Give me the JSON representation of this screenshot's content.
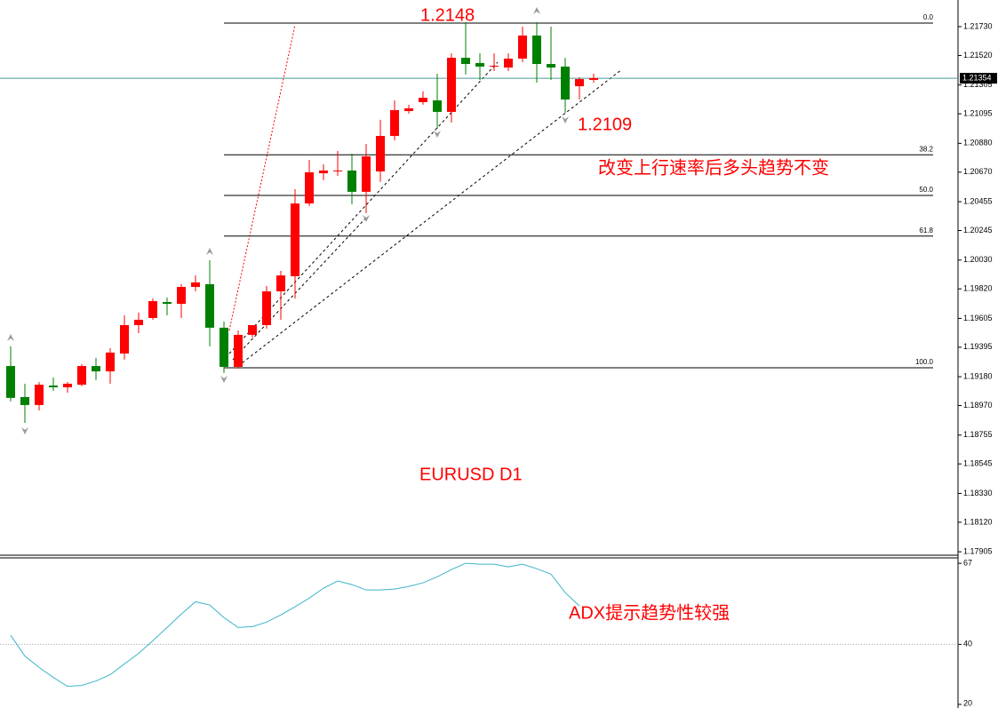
{
  "chart_data": [
    {
      "type": "candlestick",
      "up_color": "#ff0000",
      "down_color": "#008000",
      "open": [
        1.19258,
        1.19032,
        1.18974,
        1.19116,
        1.19103,
        1.19122,
        1.19258,
        1.19219,
        1.19349,
        1.19556,
        1.19608,
        1.19724,
        1.19711,
        1.19834,
        1.19854,
        1.19537,
        1.19252,
        1.19485,
        1.19556,
        1.19802,
        1.19912,
        1.20442,
        1.20662,
        1.20682,
        1.20682,
        1.20527,
        1.20675,
        1.20934,
        1.21115,
        1.2118,
        1.21193,
        1.21109,
        1.21503,
        1.21465,
        1.21439,
        1.21432,
        1.21497,
        1.21665,
        1.21458,
        1.21439,
        1.21296,
        1.21342
      ],
      "high": [
        1.19401,
        1.19129,
        1.19142,
        1.19174,
        1.19142,
        1.19271,
        1.19317,
        1.19388,
        1.19627,
        1.19647,
        1.1975,
        1.19757,
        1.19854,
        1.19918,
        1.20028,
        1.19582,
        1.19517,
        1.19556,
        1.19841,
        1.19951,
        1.20546,
        1.20759,
        1.20727,
        1.20824,
        1.20805,
        1.20876,
        1.21051,
        1.21193,
        1.21161,
        1.21258,
        1.21387,
        1.21536,
        1.21762,
        1.21536,
        1.21536,
        1.21536,
        1.2173,
        1.21762,
        1.2173,
        1.21503,
        1.21361,
        1.21387
      ],
      "low": [
        1.19,
        1.18844,
        1.18935,
        1.19077,
        1.19064,
        1.1911,
        1.19155,
        1.19129,
        1.19304,
        1.19498,
        1.19595,
        1.19627,
        1.19608,
        1.19802,
        1.19401,
        1.19207,
        1.19239,
        1.19466,
        1.1953,
        1.19595,
        1.1975,
        1.20423,
        1.20611,
        1.20643,
        1.20436,
        1.20371,
        1.20598,
        1.20902,
        1.21096,
        1.21161,
        1.20986,
        1.21031,
        1.21381,
        1.21342,
        1.21406,
        1.21406,
        1.21471,
        1.21322,
        1.21342,
        1.21102,
        1.21199,
        1.21322
      ],
      "close": [
        1.19026,
        1.18974,
        1.19122,
        1.19103,
        1.19129,
        1.19258,
        1.19219,
        1.19356,
        1.19556,
        1.19595,
        1.19731,
        1.19711,
        1.19834,
        1.19867,
        1.19537,
        1.19252,
        1.19485,
        1.19556,
        1.19802,
        1.19918,
        1.20442,
        1.20669,
        1.20682,
        1.20682,
        1.20527,
        1.20785,
        1.20934,
        1.21122,
        1.21135,
        1.21212,
        1.21109,
        1.21503,
        1.21458,
        1.21439,
        1.21445,
        1.21497,
        1.21665,
        1.21458,
        1.21432,
        1.21199,
        1.21348,
        1.21355
      ],
      "ylim": [
        1.1788,
        1.21924
      ],
      "yticks": [
        {
          "value": 1.2173,
          "label": "1.21730"
        },
        {
          "value": 1.2152,
          "label": "1.21520"
        },
        {
          "value": 1.21305,
          "label": "1.21305"
        },
        {
          "value": 1.21095,
          "label": "1.21095"
        },
        {
          "value": 1.2088,
          "label": "1.20880"
        },
        {
          "value": 1.2067,
          "label": "1.20670"
        },
        {
          "value": 1.20455,
          "label": "1.20455"
        },
        {
          "value": 1.20245,
          "label": "1.20245"
        },
        {
          "value": 1.2003,
          "label": "1.20030"
        },
        {
          "value": 1.1982,
          "label": "1.19820"
        },
        {
          "value": 1.19605,
          "label": "1.19605"
        },
        {
          "value": 1.19395,
          "label": "1.19395"
        },
        {
          "value": 1.1918,
          "label": "1.19180"
        },
        {
          "value": 1.1897,
          "label": "1.18970"
        },
        {
          "value": 1.18755,
          "label": "1.18755"
        },
        {
          "value": 1.18545,
          "label": "1.18545"
        },
        {
          "value": 1.1833,
          "label": "1.18330"
        },
        {
          "value": 1.1812,
          "label": "1.18120"
        },
        {
          "value": 1.17905,
          "label": "1.17905"
        }
      ],
      "current_price": {
        "value": 1.21354,
        "label": "1.21354",
        "color": "#4a9a9a"
      },
      "fibonacci": {
        "high": 1.21756,
        "low": 1.19245,
        "levels": [
          {
            "value": 0,
            "label": "0.0"
          },
          {
            "value": 38.2,
            "label": "38.2"
          },
          {
            "value": 50,
            "label": "50.0"
          },
          {
            "value": 61.8,
            "label": "61.8"
          },
          {
            "value": 100,
            "label": "100.0"
          }
        ]
      },
      "annotations": [
        "1.2148",
        "1.2109",
        "改变上行速率后多头趋势不变",
        "EURUSD D1"
      ]
    },
    {
      "type": "line",
      "color": "#3bb5c8",
      "values": [
        43.0,
        36.1,
        32.3,
        29.0,
        26.0,
        26.3,
        27.8,
        29.9,
        33.5,
        37.0,
        41.2,
        45.6,
        50.1,
        54.2,
        53.1,
        48.9,
        45.6,
        45.9,
        47.4,
        49.8,
        52.5,
        55.4,
        58.7,
        61.1,
        59.9,
        58.1,
        58.1,
        58.4,
        59.3,
        60.5,
        62.5,
        64.9,
        67.0,
        66.7,
        66.7,
        65.8,
        66.7,
        65.2,
        63.4,
        57.2,
        52.8,
        null
      ],
      "ylim": [
        18.8,
        68.8
      ],
      "yticks": [
        67,
        40,
        20
      ],
      "levels": [
        40
      ],
      "annotations": [
        "ADX提示趋势性较强"
      ]
    }
  ]
}
